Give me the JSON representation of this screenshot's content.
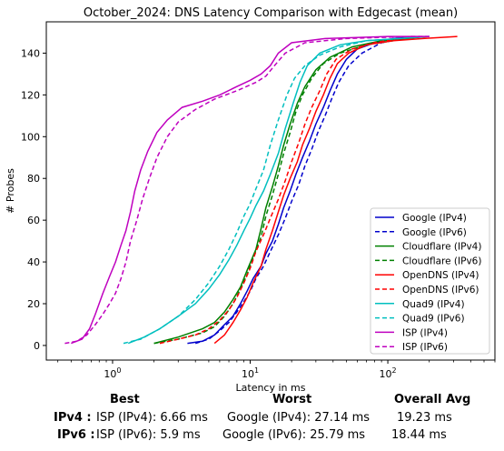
{
  "chart_data": {
    "type": "line",
    "title": "October_2024: DNS Latency Comparison with Edgecast (mean)",
    "xlabel": "Latency in ms",
    "ylabel": "# Probes",
    "xscale": "log",
    "xlim": [
      0.33,
      600
    ],
    "ylim": [
      -7,
      155
    ],
    "xticks": [
      {
        "v": 1,
        "label": "10^0"
      },
      {
        "v": 10,
        "label": "10^1"
      },
      {
        "v": 100,
        "label": "10^2"
      }
    ],
    "yticks": [
      0,
      20,
      40,
      60,
      80,
      100,
      120,
      140
    ],
    "grid": false,
    "legend_position": "lower-right",
    "series": [
      {
        "name": "Google (IPv4)",
        "color": "#0000cc",
        "dash": "solid",
        "points": [
          [
            3.5,
            1
          ],
          [
            4.5,
            2
          ],
          [
            5.5,
            5
          ],
          [
            6.5,
            10
          ],
          [
            7.5,
            14
          ],
          [
            8.5,
            20
          ],
          [
            9.5,
            26
          ],
          [
            10.5,
            32
          ],
          [
            12,
            38
          ],
          [
            13,
            44
          ],
          [
            14.5,
            50
          ],
          [
            16,
            58
          ],
          [
            17.5,
            66
          ],
          [
            19.5,
            74
          ],
          [
            21.5,
            82
          ],
          [
            24,
            90
          ],
          [
            27,
            98
          ],
          [
            30,
            106
          ],
          [
            34,
            114
          ],
          [
            38,
            122
          ],
          [
            43,
            130
          ],
          [
            50,
            137
          ],
          [
            60,
            142
          ],
          [
            80,
            145
          ],
          [
            110,
            147
          ],
          [
            150,
            148
          ]
        ]
      },
      {
        "name": "Google (IPv6)",
        "color": "#0000cc",
        "dash": "dashed",
        "points": [
          [
            4,
            1
          ],
          [
            5,
            3
          ],
          [
            6,
            7
          ],
          [
            7,
            11
          ],
          [
            8,
            16
          ],
          [
            9,
            21
          ],
          [
            10,
            26
          ],
          [
            11,
            32
          ],
          [
            12.5,
            38
          ],
          [
            14,
            45
          ],
          [
            16,
            53
          ],
          [
            18,
            61
          ],
          [
            20,
            69
          ],
          [
            22.5,
            77
          ],
          [
            25,
            86
          ],
          [
            28,
            94
          ],
          [
            31,
            102
          ],
          [
            35,
            110
          ],
          [
            39,
            118
          ],
          [
            44,
            126
          ],
          [
            52,
            134
          ],
          [
            65,
            140
          ],
          [
            90,
            145
          ],
          [
            130,
            147
          ],
          [
            180,
            148
          ]
        ]
      },
      {
        "name": "Cloudflare (IPv4)",
        "color": "#008000",
        "dash": "solid",
        "points": [
          [
            2,
            1
          ],
          [
            3,
            4
          ],
          [
            4.5,
            8
          ],
          [
            5.5,
            11
          ],
          [
            6.5,
            16
          ],
          [
            7.5,
            22
          ],
          [
            8.5,
            28
          ],
          [
            9.5,
            36
          ],
          [
            11,
            46
          ],
          [
            12,
            56
          ],
          [
            13,
            66
          ],
          [
            14.5,
            76
          ],
          [
            16,
            86
          ],
          [
            17.5,
            96
          ],
          [
            19.5,
            106
          ],
          [
            22,
            116
          ],
          [
            25,
            124
          ],
          [
            30,
            132
          ],
          [
            38,
            138
          ],
          [
            55,
            143
          ],
          [
            90,
            146
          ],
          [
            140,
            147
          ],
          [
            190,
            148
          ]
        ]
      },
      {
        "name": "Cloudflare (IPv6)",
        "color": "#008000",
        "dash": "dashed",
        "points": [
          [
            2,
            1
          ],
          [
            3,
            3
          ],
          [
            4.5,
            6
          ],
          [
            5.5,
            9
          ],
          [
            6.5,
            14
          ],
          [
            7.5,
            20
          ],
          [
            8.5,
            27
          ],
          [
            9.5,
            34
          ],
          [
            10.5,
            42
          ],
          [
            12,
            52
          ],
          [
            13,
            62
          ],
          [
            14.5,
            72
          ],
          [
            16,
            82
          ],
          [
            17.5,
            92
          ],
          [
            19.5,
            102
          ],
          [
            21.5,
            112
          ],
          [
            24,
            120
          ],
          [
            28,
            128
          ],
          [
            34,
            135
          ],
          [
            45,
            140
          ],
          [
            70,
            144
          ],
          [
            110,
            146
          ],
          [
            170,
            148
          ]
        ]
      },
      {
        "name": "OpenDNS (IPv4)",
        "color": "#ff0000",
        "dash": "solid",
        "points": [
          [
            5.5,
            1
          ],
          [
            6.5,
            5
          ],
          [
            7.5,
            11
          ],
          [
            8.5,
            17
          ],
          [
            9.5,
            23
          ],
          [
            10.5,
            30
          ],
          [
            12,
            38
          ],
          [
            13,
            46
          ],
          [
            14.5,
            55
          ],
          [
            16,
            64
          ],
          [
            17.5,
            72
          ],
          [
            19.5,
            80
          ],
          [
            22,
            88
          ],
          [
            24,
            96
          ],
          [
            27,
            104
          ],
          [
            30,
            112
          ],
          [
            34,
            120
          ],
          [
            38,
            128
          ],
          [
            43,
            135
          ],
          [
            52,
            140
          ],
          [
            70,
            144
          ],
          [
            110,
            146
          ],
          [
            180,
            147
          ],
          [
            320,
            148
          ]
        ]
      },
      {
        "name": "OpenDNS (IPv6)",
        "color": "#ff0000",
        "dash": "dashed",
        "points": [
          [
            2.2,
            1
          ],
          [
            3,
            3
          ],
          [
            4,
            5
          ],
          [
            5,
            8
          ],
          [
            6,
            12
          ],
          [
            7,
            17
          ],
          [
            8,
            23
          ],
          [
            9,
            30
          ],
          [
            10,
            37
          ],
          [
            11,
            45
          ],
          [
            12.5,
            53
          ],
          [
            14,
            61
          ],
          [
            16,
            70
          ],
          [
            18,
            79
          ],
          [
            20,
            88
          ],
          [
            22.5,
            97
          ],
          [
            25,
            106
          ],
          [
            28,
            114
          ],
          [
            32,
            122
          ],
          [
            36,
            130
          ],
          [
            42,
            137
          ],
          [
            55,
            142
          ],
          [
            80,
            145
          ],
          [
            120,
            147
          ],
          [
            200,
            148
          ]
        ]
      },
      {
        "name": "Quad9 (IPv4)",
        "color": "#00bfbf",
        "dash": "solid",
        "points": [
          [
            1.3,
            1
          ],
          [
            1.7,
            4
          ],
          [
            2.2,
            8
          ],
          [
            3,
            14
          ],
          [
            4,
            20
          ],
          [
            5,
            27
          ],
          [
            6,
            34
          ],
          [
            7,
            41
          ],
          [
            8,
            48
          ],
          [
            9,
            55
          ],
          [
            10,
            61
          ],
          [
            11,
            67
          ],
          [
            12.5,
            74
          ],
          [
            14,
            82
          ],
          [
            16,
            92
          ],
          [
            18,
            104
          ],
          [
            20.5,
            116
          ],
          [
            23,
            126
          ],
          [
            26,
            134
          ],
          [
            32,
            140
          ],
          [
            45,
            144
          ],
          [
            70,
            146
          ],
          [
            120,
            147
          ],
          [
            200,
            148
          ]
        ]
      },
      {
        "name": "Quad9 (IPv6)",
        "color": "#00bfbf",
        "dash": "dashed",
        "points": [
          [
            1.2,
            1
          ],
          [
            1.6,
            3
          ],
          [
            2.2,
            8
          ],
          [
            3,
            14
          ],
          [
            4,
            22
          ],
          [
            5,
            30
          ],
          [
            6,
            38
          ],
          [
            7,
            46
          ],
          [
            8,
            54
          ],
          [
            9,
            62
          ],
          [
            10,
            68
          ],
          [
            11,
            75
          ],
          [
            12.5,
            84
          ],
          [
            14,
            96
          ],
          [
            16,
            108
          ],
          [
            18.5,
            120
          ],
          [
            21,
            128
          ],
          [
            25,
            134
          ],
          [
            32,
            139
          ],
          [
            45,
            143
          ],
          [
            70,
            146
          ],
          [
            120,
            147
          ],
          [
            200,
            148
          ]
        ]
      },
      {
        "name": "ISP (IPv4)",
        "color": "#bf00bf",
        "dash": "solid",
        "points": [
          [
            0.5,
            1
          ],
          [
            0.6,
            3
          ],
          [
            0.68,
            8
          ],
          [
            0.75,
            15
          ],
          [
            0.85,
            25
          ],
          [
            0.95,
            33
          ],
          [
            1.05,
            40
          ],
          [
            1.15,
            48
          ],
          [
            1.25,
            55
          ],
          [
            1.35,
            64
          ],
          [
            1.45,
            74
          ],
          [
            1.6,
            84
          ],
          [
            1.8,
            93
          ],
          [
            2.1,
            102
          ],
          [
            2.5,
            108
          ],
          [
            3.2,
            114
          ],
          [
            4.5,
            117
          ],
          [
            6,
            120
          ],
          [
            8,
            124
          ],
          [
            10,
            127
          ],
          [
            12,
            130
          ],
          [
            14,
            134
          ],
          [
            16,
            140
          ],
          [
            20,
            145
          ],
          [
            35,
            147
          ],
          [
            100,
            148
          ],
          [
            200,
            148
          ]
        ]
      },
      {
        "name": "ISP (IPv6)",
        "color": "#bf00bf",
        "dash": "dashed",
        "points": [
          [
            0.45,
            1
          ],
          [
            0.55,
            2
          ],
          [
            0.65,
            5
          ],
          [
            0.75,
            10
          ],
          [
            0.85,
            15
          ],
          [
            0.95,
            20
          ],
          [
            1.05,
            25
          ],
          [
            1.15,
            32
          ],
          [
            1.25,
            40
          ],
          [
            1.35,
            50
          ],
          [
            1.5,
            60
          ],
          [
            1.65,
            70
          ],
          [
            1.85,
            80
          ],
          [
            2.1,
            90
          ],
          [
            2.5,
            100
          ],
          [
            3,
            107
          ],
          [
            4,
            113
          ],
          [
            5.5,
            118
          ],
          [
            8,
            122
          ],
          [
            11,
            126
          ],
          [
            13,
            129
          ],
          [
            15,
            134
          ],
          [
            18,
            140
          ],
          [
            25,
            145
          ],
          [
            50,
            147
          ],
          [
            150,
            148
          ],
          [
            200,
            148
          ]
        ]
      }
    ]
  },
  "summary": {
    "col_best": "Best",
    "col_worst": "Worst",
    "col_avg": "Overall Avg",
    "ipv4": {
      "label": "IPv4",
      "best": "ISP (IPv4): 6.66 ms",
      "worst": "Google (IPv4): 27.14 ms",
      "avg": "19.23 ms"
    },
    "ipv6": {
      "label": "IPv6",
      "best": "ISP (IPv6): 5.9 ms",
      "worst": "Google (IPv6): 25.79 ms",
      "avg": "18.44 ms"
    }
  }
}
